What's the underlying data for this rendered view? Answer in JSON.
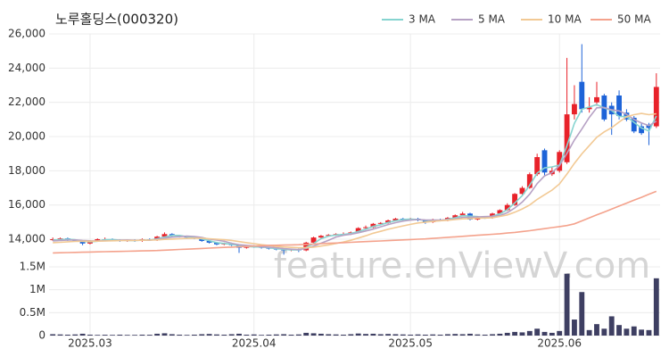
{
  "chart_data": [
    {
      "type": "candlestick",
      "title": "노루홀딩스(000320)",
      "watermark": "feature.enViewV.com",
      "categories": [
        null,
        null,
        null,
        null,
        null,
        "2025.03",
        null,
        null,
        null,
        null,
        null,
        null,
        null,
        null,
        null,
        null,
        null,
        null,
        null,
        null,
        null,
        null,
        null,
        null,
        null,
        null,
        null,
        "2025.04",
        null,
        null,
        null,
        null,
        null,
        null,
        null,
        null,
        null,
        null,
        null,
        null,
        null,
        null,
        null,
        null,
        null,
        null,
        null,
        null,
        "2025.05",
        null,
        null,
        null,
        null,
        null,
        null,
        null,
        null,
        null,
        null,
        null,
        null,
        null,
        null,
        null,
        null,
        null,
        null,
        null,
        "2025.06",
        null,
        null,
        null,
        null,
        null,
        null,
        null,
        null,
        null,
        null,
        null,
        null,
        null
      ],
      "open": [
        13950,
        14000,
        14050,
        13950,
        13900,
        13750,
        13900,
        14000,
        14000,
        13950,
        13900,
        13950,
        13900,
        14000,
        13950,
        14150,
        14300,
        14200,
        14150,
        14100,
        14050,
        13900,
        13800,
        13700,
        13750,
        13650,
        13500,
        13600,
        13550,
        13500,
        13450,
        13400,
        13350,
        13400,
        13350,
        13800,
        14100,
        14200,
        14250,
        14300,
        14300,
        14400,
        14650,
        14700,
        14900,
        14950,
        15100,
        15200,
        15150,
        15200,
        15100,
        15000,
        15150,
        15100,
        15250,
        15400,
        15500,
        15150,
        15300,
        15250,
        15500,
        15700,
        16000,
        16650,
        17000,
        17800,
        19200,
        17800,
        18000,
        18500,
        21300,
        23200,
        21600,
        22000,
        22400,
        21800,
        22400,
        21400,
        21100,
        20600,
        20700,
        20600
      ],
      "high": [
        14100,
        14100,
        14100,
        14000,
        13950,
        13950,
        14050,
        14100,
        14050,
        14000,
        14000,
        14000,
        14050,
        14050,
        14200,
        14400,
        14350,
        14250,
        14200,
        14150,
        14100,
        13950,
        13850,
        13800,
        13800,
        13700,
        13650,
        13650,
        13600,
        13550,
        13500,
        13450,
        13450,
        13450,
        13850,
        14150,
        14250,
        14300,
        14350,
        14400,
        14450,
        14700,
        14800,
        14950,
        15000,
        15150,
        15250,
        15250,
        15250,
        15250,
        15150,
        15200,
        15200,
        15300,
        15450,
        15600,
        15550,
        15350,
        15350,
        15550,
        15750,
        16100,
        16700,
        17100,
        17900,
        19000,
        19300,
        18200,
        19200,
        24600,
        23000,
        25400,
        22300,
        23200,
        22500,
        22000,
        22700,
        21600,
        21200,
        20800,
        20800,
        23700
      ],
      "low": [
        13900,
        13950,
        13900,
        13850,
        13650,
        13700,
        13850,
        13950,
        13900,
        13850,
        13850,
        13850,
        13850,
        13900,
        13900,
        14100,
        14150,
        14100,
        14050,
        14000,
        13850,
        13750,
        13650,
        13650,
        13600,
        13200,
        13450,
        13500,
        13450,
        13400,
        13350,
        13100,
        13300,
        13250,
        13300,
        13750,
        14050,
        14150,
        14200,
        14250,
        14250,
        14350,
        14600,
        14650,
        14850,
        14900,
        15050,
        15100,
        15100,
        15050,
        14900,
        14950,
        15050,
        15050,
        15200,
        15350,
        15100,
        15100,
        15200,
        15200,
        15450,
        15650,
        15950,
        16600,
        16950,
        17700,
        17700,
        17700,
        17900,
        18400,
        21000,
        21400,
        21400,
        21800,
        20900,
        20100,
        21000,
        20900,
        20200,
        20100,
        19500,
        20500
      ],
      "close": [
        14000,
        14050,
        13950,
        13900,
        13750,
        13900,
        14000,
        14000,
        13950,
        13900,
        13950,
        13900,
        14000,
        13950,
        14150,
        14300,
        14200,
        14150,
        14100,
        14050,
        13900,
        13800,
        13700,
        13750,
        13650,
        13500,
        13600,
        13550,
        13500,
        13450,
        13400,
        13350,
        13400,
        13350,
        13800,
        14100,
        14200,
        14250,
        14300,
        14300,
        14400,
        14650,
        14700,
        14900,
        14950,
        15100,
        15200,
        15150,
        15200,
        15100,
        15000,
        15150,
        15100,
        15250,
        15400,
        15500,
        15150,
        15300,
        15250,
        15500,
        15700,
        16000,
        16650,
        17000,
        17800,
        18800,
        17900,
        18000,
        19100,
        21300,
        21900,
        21600,
        21700,
        22300,
        21000,
        21300,
        21200,
        21000,
        20300,
        20200,
        20500,
        22900
      ],
      "up_color": "#e8222a",
      "down_color": "#1d63d8",
      "series": [
        {
          "name": "3 MA",
          "color": "#86d4d0",
          "values": [
            13950,
            13980,
            14000,
            13970,
            13870,
            13850,
            13880,
            13970,
            13980,
            13950,
            13930,
            13920,
            13950,
            13950,
            14030,
            14130,
            14220,
            14220,
            14150,
            14100,
            14020,
            13920,
            13800,
            13750,
            13700,
            13630,
            13580,
            13550,
            13550,
            13500,
            13450,
            13400,
            13380,
            13370,
            13520,
            13750,
            14030,
            14180,
            14250,
            14280,
            14330,
            14450,
            14580,
            14750,
            14850,
            14980,
            15080,
            15150,
            15180,
            15150,
            15100,
            15080,
            15080,
            15170,
            15250,
            15380,
            15350,
            15320,
            15230,
            15350,
            15480,
            15730,
            16120,
            16550,
            17150,
            17870,
            18170,
            18230,
            18330,
            19470,
            20770,
            21600,
            21730,
            21870,
            21670,
            21530,
            21170,
            21170,
            20830,
            20500,
            20330,
            21200
          ]
        },
        {
          "name": "5 MA",
          "color": "#b6a1c4",
          "values": [
            13900,
            13930,
            13950,
            13960,
            13930,
            13910,
            13900,
            13910,
            13920,
            13950,
            13960,
            13940,
            13940,
            13940,
            13990,
            14060,
            14120,
            14150,
            14180,
            14160,
            14100,
            14000,
            13950,
            13880,
            13760,
            13680,
            13640,
            13610,
            13560,
            13540,
            13500,
            13450,
            13420,
            13390,
            13460,
            13600,
            13770,
            13940,
            14130,
            14230,
            14290,
            14380,
            14480,
            14590,
            14730,
            14860,
            14970,
            15060,
            15120,
            15150,
            15130,
            15120,
            15120,
            15140,
            15180,
            15280,
            15280,
            15300,
            15320,
            15340,
            15380,
            15550,
            15830,
            16170,
            16630,
            17250,
            17700,
            17900,
            18300,
            19020,
            19800,
            20440,
            21120,
            21680,
            21700,
            21560,
            21500,
            21300,
            21000,
            20800,
            20640,
            20900
          ]
        },
        {
          "name": "10 MA",
          "color": "#f2c994",
          "values": [
            13800,
            13820,
            13850,
            13870,
            13880,
            13880,
            13890,
            13900,
            13910,
            13920,
            13930,
            13930,
            13940,
            13950,
            13960,
            13990,
            14010,
            14030,
            14050,
            14060,
            14060,
            14030,
            14000,
            13970,
            13930,
            13860,
            13800,
            13740,
            13680,
            13630,
            13580,
            13550,
            13520,
            13500,
            13510,
            13540,
            13600,
            13670,
            13750,
            13840,
            13940,
            14070,
            14200,
            14350,
            14460,
            14580,
            14680,
            14780,
            14870,
            14950,
            15000,
            15040,
            15080,
            15110,
            15150,
            15190,
            15210,
            15230,
            15240,
            15260,
            15330,
            15420,
            15580,
            15770,
            16000,
            16330,
            16600,
            16870,
            17230,
            17810,
            18430,
            18990,
            19470,
            19960,
            20270,
            20520,
            20850,
            21160,
            21280,
            21350,
            21280,
            21330
          ]
        },
        {
          "name": "50 MA",
          "color": "#f4a28c",
          "values": [
            13200,
            13210,
            13220,
            13230,
            13240,
            13250,
            13260,
            13270,
            13280,
            13290,
            13300,
            13310,
            13320,
            13330,
            13340,
            13360,
            13380,
            13400,
            13420,
            13440,
            13460,
            13480,
            13500,
            13520,
            13540,
            13560,
            13580,
            13600,
            13620,
            13640,
            13650,
            13660,
            13670,
            13680,
            13700,
            13720,
            13740,
            13760,
            13780,
            13800,
            13820,
            13840,
            13860,
            13880,
            13900,
            13920,
            13940,
            13960,
            13980,
            14000,
            14020,
            14050,
            14080,
            14110,
            14140,
            14170,
            14200,
            14230,
            14260,
            14290,
            14320,
            14360,
            14400,
            14450,
            14500,
            14560,
            14620,
            14680,
            14740,
            14800,
            14900,
            15070,
            15250,
            15420,
            15590,
            15760,
            15940,
            16110,
            16280,
            16450,
            16630,
            16800
          ]
        }
      ],
      "ylim": [
        13100,
        26000
      ],
      "yticks": [
        {
          "value": 14000,
          "label": "14,000"
        },
        {
          "value": 16000,
          "label": "16,000"
        },
        {
          "value": 18000,
          "label": "18,000"
        },
        {
          "value": 20000,
          "label": "20,000"
        },
        {
          "value": 22000,
          "label": "22,000"
        },
        {
          "value": 24000,
          "label": "24,000"
        },
        {
          "value": 26000,
          "label": "26,000"
        }
      ],
      "grid": true,
      "legend": "top-right"
    },
    {
      "type": "bar",
      "color": "#3e3f62",
      "values": [
        30000,
        25000,
        20000,
        25000,
        40000,
        20000,
        15000,
        18000,
        15000,
        20000,
        15000,
        15000,
        20000,
        18000,
        40000,
        50000,
        30000,
        20000,
        15000,
        20000,
        30000,
        35000,
        25000,
        20000,
        30000,
        40000,
        20000,
        25000,
        15000,
        20000,
        25000,
        30000,
        20000,
        25000,
        60000,
        50000,
        40000,
        30000,
        25000,
        20000,
        30000,
        45000,
        35000,
        40000,
        30000,
        35000,
        30000,
        25000,
        20000,
        25000,
        20000,
        25000,
        20000,
        30000,
        35000,
        30000,
        40000,
        25000,
        20000,
        30000,
        40000,
        60000,
        80000,
        70000,
        100000,
        150000,
        80000,
        60000,
        100000,
        1350000,
        350000,
        950000,
        120000,
        250000,
        150000,
        420000,
        230000,
        150000,
        200000,
        130000,
        120000,
        1250000
      ],
      "ylim": [
        0,
        1500000
      ],
      "yticks": [
        0,
        {
          "value": 500000,
          "label": "0.5M"
        },
        {
          "value": 1000000,
          "label": "1M"
        },
        {
          "value": 1500000,
          "label": "1.5M"
        }
      ]
    }
  ]
}
